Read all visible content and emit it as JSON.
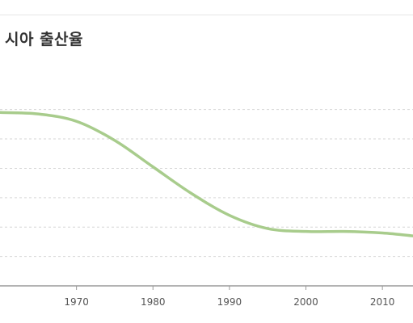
{
  "title": "시아 출산율",
  "colors": {
    "series": "#a8cc8c",
    "grid": "#d6d6d6",
    "axis": "#9a9a9a",
    "tick_text": "#555555",
    "title_text": "#333333"
  },
  "chart_data": {
    "type": "line",
    "title": "시아 출산율",
    "xlabel": "",
    "ylabel": "",
    "x_ticks": [
      "1970",
      "1980",
      "1990",
      "2000",
      "2010"
    ],
    "xlim": [
      1960,
      2014
    ],
    "grid": "horizontal dashed",
    "series": [
      {
        "x": [
          1960,
          1965,
          1970,
          1975,
          1980,
          1985,
          1990,
          1995,
          2000,
          2005,
          2010,
          2014
        ],
        "values": [
          5.9,
          5.85,
          5.6,
          4.95,
          4.05,
          3.15,
          2.4,
          1.95,
          1.85,
          1.85,
          1.8,
          1.7
        ]
      }
    ],
    "y_gridlines": [
      1,
      2,
      3,
      4,
      5,
      6
    ],
    "ylim": [
      0,
      7.2
    ]
  }
}
